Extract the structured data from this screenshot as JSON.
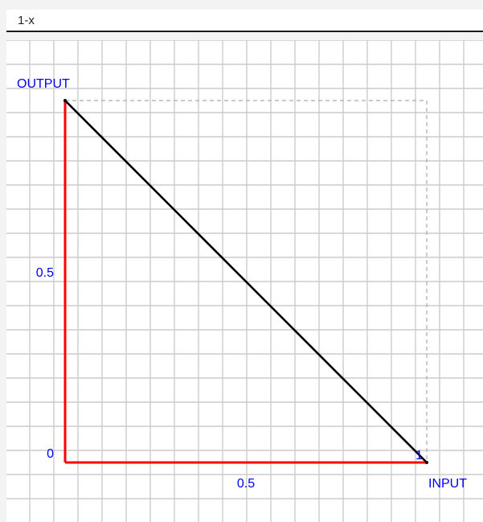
{
  "formula": {
    "value": "1-x"
  },
  "chart_data": {
    "type": "line",
    "title": "",
    "xlabel": "INPUT",
    "ylabel": "OUTPUT",
    "xlim": [
      0,
      1
    ],
    "ylim": [
      0,
      1
    ],
    "grid": true,
    "x_ticks": [
      {
        "value": 0.5,
        "label": "0.5"
      },
      {
        "value": 1,
        "label": "1"
      }
    ],
    "y_ticks": [
      {
        "value": 0,
        "label": "0"
      },
      {
        "value": 0.5,
        "label": "0.5"
      }
    ],
    "series": [
      {
        "color": "#000000",
        "points": [
          {
            "x": 0,
            "y": 1
          },
          {
            "x": 1,
            "y": 0
          }
        ]
      }
    ],
    "axis_color": "#ff0000",
    "label_color": "#0000ee"
  }
}
